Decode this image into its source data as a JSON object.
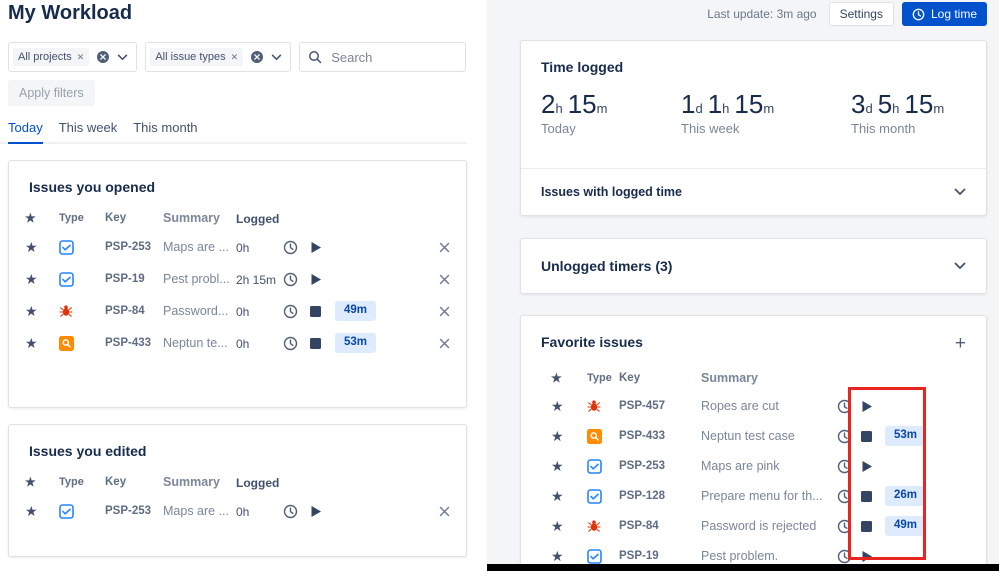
{
  "page": {
    "title": "My Workload",
    "last_update": "Last update: 3m ago",
    "settings_label": "Settings",
    "log_time_label": "Log time"
  },
  "filters": {
    "projects_chip": "All projects",
    "issue_types_chip": "All issue types",
    "search_placeholder": "Search",
    "apply_label": "Apply filters"
  },
  "tabs": [
    {
      "label": "Today",
      "active": true
    },
    {
      "label": "This week",
      "active": false
    },
    {
      "label": "This month",
      "active": false
    }
  ],
  "issues_opened": {
    "title": "Issues you opened",
    "columns": [
      "Type",
      "Key",
      "Summary",
      "Logged"
    ],
    "rows": [
      {
        "type": "task",
        "key": "PSP-253",
        "summary": "Maps are ...",
        "logged": "0h",
        "timer": "play",
        "time": ""
      },
      {
        "type": "task",
        "key": "PSP-19",
        "summary": "Pest probl...",
        "logged": "2h 15m",
        "timer": "play",
        "time": ""
      },
      {
        "type": "bug",
        "key": "PSP-84",
        "summary": "Password...",
        "logged": "0h",
        "timer": "stop",
        "time": "49m"
      },
      {
        "type": "test",
        "key": "PSP-433",
        "summary": "Neptun te...",
        "logged": "0h",
        "timer": "stop",
        "time": "53m"
      }
    ]
  },
  "issues_edited": {
    "title": "Issues you edited",
    "columns": [
      "Type",
      "Key",
      "Summary",
      "Logged"
    ],
    "rows": [
      {
        "type": "task",
        "key": "PSP-253",
        "summary": "Maps are ...",
        "logged": "0h",
        "timer": "play",
        "time": ""
      }
    ]
  },
  "time_logged": {
    "title": "Time logged",
    "stats": [
      {
        "label": "Today",
        "segments": [
          {
            "value": "2",
            "unit": "h"
          },
          {
            "value": "15",
            "unit": "m"
          }
        ]
      },
      {
        "label": "This week",
        "segments": [
          {
            "value": "1",
            "unit": "d"
          },
          {
            "value": "1",
            "unit": "h"
          },
          {
            "value": "15",
            "unit": "m"
          }
        ]
      },
      {
        "label": "This month",
        "segments": [
          {
            "value": "3",
            "unit": "d"
          },
          {
            "value": "5",
            "unit": "h"
          },
          {
            "value": "15",
            "unit": "m"
          }
        ]
      }
    ],
    "toggle_label": "Issues with logged time"
  },
  "unlogged_timers": {
    "title": "Unlogged timers (3)"
  },
  "favorite_issues": {
    "title": "Favorite issues",
    "add_label": "+",
    "columns": [
      "Type",
      "Key",
      "Summary"
    ],
    "rows": [
      {
        "type": "bug",
        "key": "PSP-457",
        "summary": "Ropes are cut",
        "timer": "play",
        "time": ""
      },
      {
        "type": "test",
        "key": "PSP-433",
        "summary": "Neptun test case",
        "timer": "stop",
        "time": "53m"
      },
      {
        "type": "task",
        "key": "PSP-253",
        "summary": "Maps are pink",
        "timer": "play",
        "time": ""
      },
      {
        "type": "task",
        "key": "PSP-128",
        "summary": "Prepare menu for th...",
        "timer": "stop",
        "time": "26m"
      },
      {
        "type": "bug",
        "key": "PSP-84",
        "summary": "Password is rejected",
        "timer": "stop",
        "time": "49m"
      },
      {
        "type": "task",
        "key": "PSP-19",
        "summary": "Pest problem.",
        "timer": "play",
        "time": ""
      }
    ]
  },
  "icons": {
    "task": "issuetype-task-icon",
    "bug": "issuetype-bug-icon",
    "test": "issuetype-test-icon",
    "star": "star-icon",
    "clock": "clock-icon",
    "play": "play-icon",
    "stop": "stop-icon",
    "close": "close-icon",
    "chevron": "chevron-down-icon",
    "search": "search-icon",
    "clear": "clear-filter-icon",
    "plus": "plus-icon"
  },
  "colors": {
    "accent": "#0052cc",
    "badge_bg": "#deebff",
    "badge_text": "#0747a6",
    "bug_red": "#de350b",
    "task_blue": "#2684ff",
    "test_orange": "#ff8b00",
    "highlight_red": "#e8251f"
  }
}
